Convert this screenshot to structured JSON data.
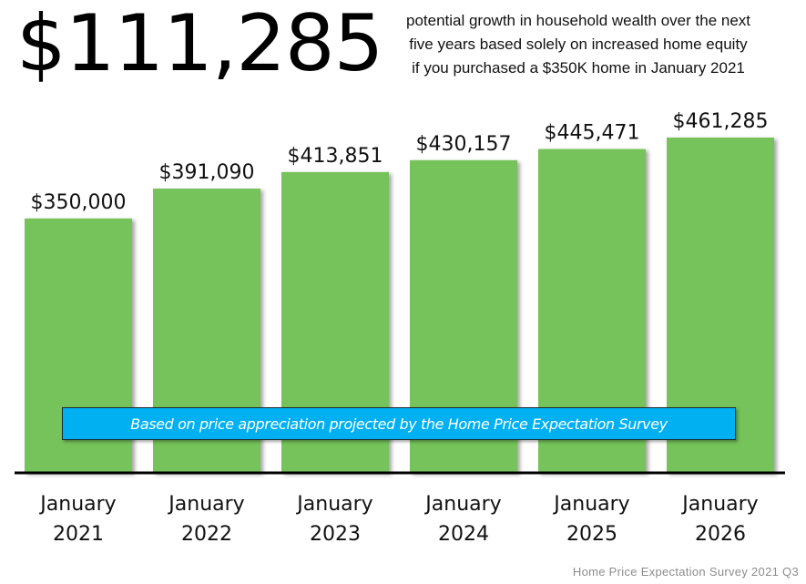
{
  "headline": "$111,285",
  "subtitle_lines": [
    "potential growth in household wealth over the next",
    "five years based solely on increased home equity",
    "if you purchased a $350K home in January 2021"
  ],
  "banner": "Based on price appreciation projected by the Home Price Expectation Survey",
  "source": "Home Price Expectation Survey 2021 Q3",
  "colors": {
    "bar": "#74c35a",
    "banner": "#00b0f0",
    "axis": "#000000"
  },
  "chart_data": {
    "type": "bar",
    "categories": [
      [
        "January",
        "2021"
      ],
      [
        "January",
        "2022"
      ],
      [
        "January",
        "2023"
      ],
      [
        "January",
        "2024"
      ],
      [
        "January",
        "2025"
      ],
      [
        "January",
        "2026"
      ]
    ],
    "values": [
      350000,
      391090,
      413851,
      430157,
      445471,
      461285
    ],
    "value_labels": [
      "$350,000",
      "$391,090",
      "$413,851",
      "$430,157",
      "$445,471",
      "$461,285"
    ],
    "ylim": [
      0,
      461285
    ],
    "grid": false,
    "legend": "none"
  }
}
